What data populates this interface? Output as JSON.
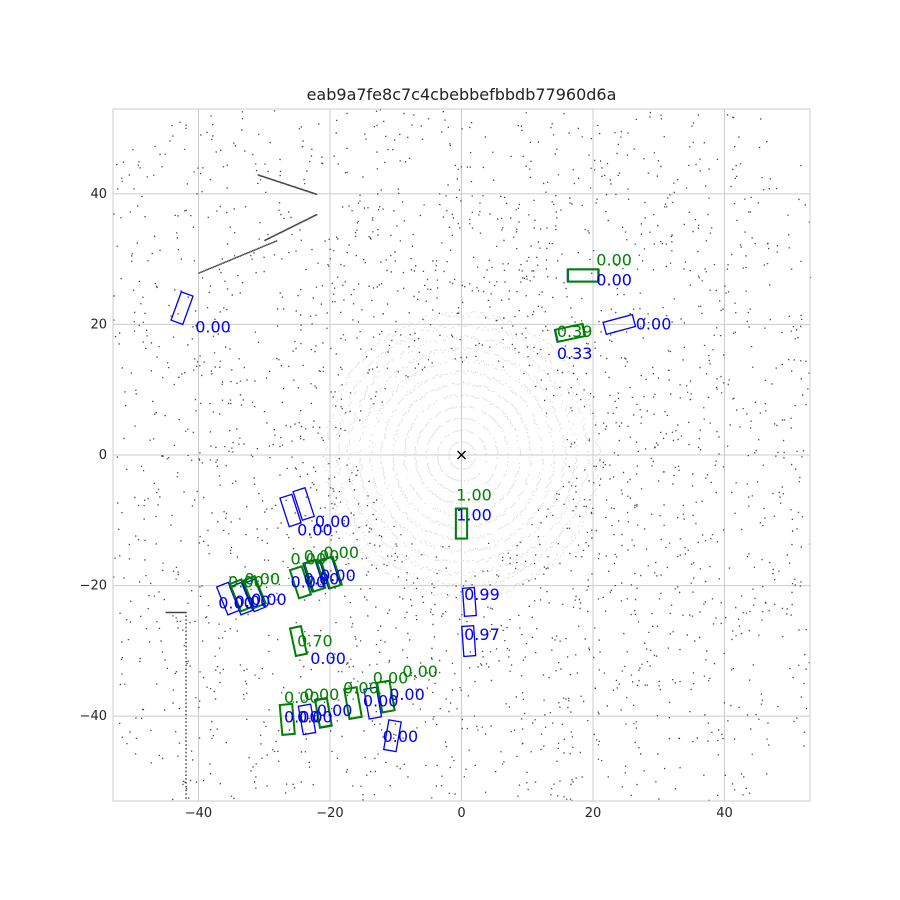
{
  "chart_data": {
    "type": "scatter",
    "title": "eab9a7fe8c7c4cbebbefbbdb77960d6a",
    "xlabel": "",
    "ylabel": "",
    "xlim": [
      -53,
      53
    ],
    "ylim": [
      -53,
      53
    ],
    "xticks": [
      -40,
      -20,
      0,
      20,
      40
    ],
    "yticks": [
      40,
      20,
      0,
      -20,
      -40
    ],
    "xtick_labels": [
      "−40",
      "−20",
      "0",
      "20",
      "40"
    ],
    "ytick_labels": [
      "40",
      "20",
      "0",
      "−20",
      "−40"
    ],
    "grid": true,
    "ego_marker": {
      "x": 0,
      "y": 0,
      "symbol": "×"
    },
    "colors": {
      "prediction": "#0000ee",
      "ground_truth": "#008000",
      "points_near": "#d8d8d8",
      "points_far": "#444444",
      "grid": "#cccccc"
    },
    "boxes": [
      {
        "kind": "pred",
        "x": 18.5,
        "y": 27.5,
        "w": 4.8,
        "l": 1.8,
        "ang": 0
      },
      {
        "kind": "gt",
        "x": 18.5,
        "y": 27.5,
        "w": 4.6,
        "l": 1.9,
        "ang": 0
      },
      {
        "kind": "pred",
        "x": 24.0,
        "y": 20.0,
        "w": 4.6,
        "l": 1.9,
        "ang": 15
      },
      {
        "kind": "pred",
        "x": 16.5,
        "y": 18.7,
        "w": 4.4,
        "l": 1.9,
        "ang": 12
      },
      {
        "kind": "gt",
        "x": 16.5,
        "y": 18.7,
        "w": 4.2,
        "l": 1.9,
        "ang": 12
      },
      {
        "kind": "pred",
        "x": -42.5,
        "y": 22.5,
        "w": 1.9,
        "l": 4.6,
        "ang": -20
      },
      {
        "kind": "pred",
        "x": 0,
        "y": -10.5,
        "w": 1.8,
        "l": 4.6,
        "ang": 0
      },
      {
        "kind": "gt",
        "x": 0,
        "y": -10.5,
        "w": 1.7,
        "l": 4.6,
        "ang": 0
      },
      {
        "kind": "pred",
        "x": 1.2,
        "y": -22.5,
        "w": 1.8,
        "l": 4.3,
        "ang": 4
      },
      {
        "kind": "pred",
        "x": 1.1,
        "y": -28.5,
        "w": 1.8,
        "l": 4.6,
        "ang": 4
      },
      {
        "kind": "pred",
        "x": -26.0,
        "y": -8.5,
        "w": 1.9,
        "l": 4.6,
        "ang": 18
      },
      {
        "kind": "pred",
        "x": -24.0,
        "y": -7.5,
        "w": 1.9,
        "l": 4.6,
        "ang": 18
      },
      {
        "kind": "pred",
        "x": -24.5,
        "y": -19.5,
        "w": 1.9,
        "l": 4.6,
        "ang": 18
      },
      {
        "kind": "gt",
        "x": -24.5,
        "y": -19.5,
        "w": 1.9,
        "l": 4.5,
        "ang": 18
      },
      {
        "kind": "pred",
        "x": -22.5,
        "y": -18.5,
        "w": 1.9,
        "l": 4.6,
        "ang": 18
      },
      {
        "kind": "gt",
        "x": -22.3,
        "y": -18.5,
        "w": 1.9,
        "l": 4.5,
        "ang": 18
      },
      {
        "kind": "pred",
        "x": -20.0,
        "y": -18.0,
        "w": 1.9,
        "l": 4.6,
        "ang": 18
      },
      {
        "kind": "gt",
        "x": -19.8,
        "y": -18.0,
        "w": 1.9,
        "l": 4.5,
        "ang": 18
      },
      {
        "kind": "pred",
        "x": -35.5,
        "y": -22.0,
        "w": 1.9,
        "l": 4.6,
        "ang": 22
      },
      {
        "kind": "pred",
        "x": -33.5,
        "y": -22.0,
        "w": 1.9,
        "l": 4.6,
        "ang": 22
      },
      {
        "kind": "gt",
        "x": -33.5,
        "y": -21.5,
        "w": 1.9,
        "l": 4.5,
        "ang": 22
      },
      {
        "kind": "pred",
        "x": -31.5,
        "y": -21.5,
        "w": 1.9,
        "l": 4.6,
        "ang": 22
      },
      {
        "kind": "gt",
        "x": -31.5,
        "y": -21.0,
        "w": 1.9,
        "l": 4.5,
        "ang": 22
      },
      {
        "kind": "pred",
        "x": -24.8,
        "y": -28.5,
        "w": 1.7,
        "l": 4.4,
        "ang": 12
      },
      {
        "kind": "gt",
        "x": -24.8,
        "y": -28.5,
        "w": 1.7,
        "l": 4.3,
        "ang": 12
      },
      {
        "kind": "pred",
        "x": -26.5,
        "y": -40.5,
        "w": 1.9,
        "l": 4.6,
        "ang": 5
      },
      {
        "kind": "gt",
        "x": -26.5,
        "y": -40.5,
        "w": 1.9,
        "l": 4.6,
        "ang": 5
      },
      {
        "kind": "pred",
        "x": -23.5,
        "y": -40.5,
        "w": 1.9,
        "l": 4.4,
        "ang": 10
      },
      {
        "kind": "pred",
        "x": -21.0,
        "y": -39.5,
        "w": 1.9,
        "l": 4.4,
        "ang": 10
      },
      {
        "kind": "gt",
        "x": -21.0,
        "y": -39.5,
        "w": 1.8,
        "l": 4.2,
        "ang": 10
      },
      {
        "kind": "pred",
        "x": -16.5,
        "y": -38.0,
        "w": 1.9,
        "l": 4.6,
        "ang": 10
      },
      {
        "kind": "gt",
        "x": -16.5,
        "y": -38.0,
        "w": 1.9,
        "l": 4.6,
        "ang": 10
      },
      {
        "kind": "pred",
        "x": -13.5,
        "y": -38.0,
        "w": 1.9,
        "l": 4.6,
        "ang": 10
      },
      {
        "kind": "pred",
        "x": -11.5,
        "y": -37.0,
        "w": 1.9,
        "l": 4.6,
        "ang": 10
      },
      {
        "kind": "gt",
        "x": -11.5,
        "y": -37.0,
        "w": 1.9,
        "l": 4.6,
        "ang": 10
      },
      {
        "kind": "pred",
        "x": -10.5,
        "y": -43.0,
        "w": 1.9,
        "l": 4.6,
        "ang": -10
      }
    ],
    "labels": [
      {
        "kind": "gt",
        "x": 20.5,
        "y": 29.0,
        "text": "0.00"
      },
      {
        "kind": "pred",
        "x": 20.5,
        "y": 26.0,
        "text": "0.00"
      },
      {
        "kind": "pred",
        "x": 26.5,
        "y": 19.2,
        "text": "0.00"
      },
      {
        "kind": "gt",
        "x": 14.5,
        "y": 18.1,
        "text": "0.39"
      },
      {
        "kind": "pred",
        "x": 14.5,
        "y": 14.7,
        "text": "0.33"
      },
      {
        "kind": "pred",
        "x": -40.5,
        "y": 18.8,
        "text": "0.00"
      },
      {
        "kind": "gt",
        "x": -0.8,
        "y": -7.0,
        "text": "1.00"
      },
      {
        "kind": "pred",
        "x": -0.8,
        "y": -10.0,
        "text": "1.00"
      },
      {
        "kind": "pred",
        "x": 0.4,
        "y": -22.2,
        "text": "0.99"
      },
      {
        "kind": "pred",
        "x": 0.4,
        "y": -28.3,
        "text": "0.97"
      },
      {
        "kind": "pred",
        "x": -22.3,
        "y": -11.0,
        "text": "0.00"
      },
      {
        "kind": "pred",
        "x": -25.0,
        "y": -12.3,
        "text": "0.00"
      },
      {
        "kind": "gt",
        "x": -26.0,
        "y": -16.8,
        "text": "0.00"
      },
      {
        "kind": "gt",
        "x": -24.0,
        "y": -16.3,
        "text": "0.00"
      },
      {
        "kind": "gt",
        "x": -21.0,
        "y": -15.8,
        "text": "0.00"
      },
      {
        "kind": "pred",
        "x": -26.0,
        "y": -20.3,
        "text": "0.00"
      },
      {
        "kind": "pred",
        "x": -24.0,
        "y": -19.8,
        "text": "0.00"
      },
      {
        "kind": "pred",
        "x": -21.5,
        "y": -19.3,
        "text": "0.00"
      },
      {
        "kind": "gt",
        "x": -35.5,
        "y": -20.3,
        "text": "0.00"
      },
      {
        "kind": "gt",
        "x": -33.0,
        "y": -19.8,
        "text": "0.00"
      },
      {
        "kind": "pred",
        "x": -37.0,
        "y": -23.5,
        "text": "0.00"
      },
      {
        "kind": "pred",
        "x": -34.5,
        "y": -23.3,
        "text": "0.00"
      },
      {
        "kind": "pred",
        "x": -32.0,
        "y": -23.0,
        "text": "0.00"
      },
      {
        "kind": "gt",
        "x": -25.0,
        "y": -29.3,
        "text": "0.70"
      },
      {
        "kind": "pred",
        "x": -23.0,
        "y": -32.0,
        "text": "0.00"
      },
      {
        "kind": "gt",
        "x": -27.0,
        "y": -38.0,
        "text": "0.00"
      },
      {
        "kind": "gt",
        "x": -24.0,
        "y": -37.5,
        "text": "0.00"
      },
      {
        "kind": "gt",
        "x": -18.0,
        "y": -36.5,
        "text": "0.00"
      },
      {
        "kind": "gt",
        "x": -13.5,
        "y": -35.0,
        "text": "0.00"
      },
      {
        "kind": "gt",
        "x": -9.0,
        "y": -34.0,
        "text": "0.00"
      },
      {
        "kind": "pred",
        "x": -27.0,
        "y": -41.0,
        "text": "0.00"
      },
      {
        "kind": "pred",
        "x": -25.0,
        "y": -41.0,
        "text": "0.00"
      },
      {
        "kind": "pred",
        "x": -22.0,
        "y": -40.0,
        "text": "0.00"
      },
      {
        "kind": "pred",
        "x": -15.0,
        "y": -38.5,
        "text": "0.00"
      },
      {
        "kind": "pred",
        "x": -11.0,
        "y": -37.5,
        "text": "0.00"
      },
      {
        "kind": "pred",
        "x": -12.0,
        "y": -44.0,
        "text": "0.00"
      }
    ]
  }
}
